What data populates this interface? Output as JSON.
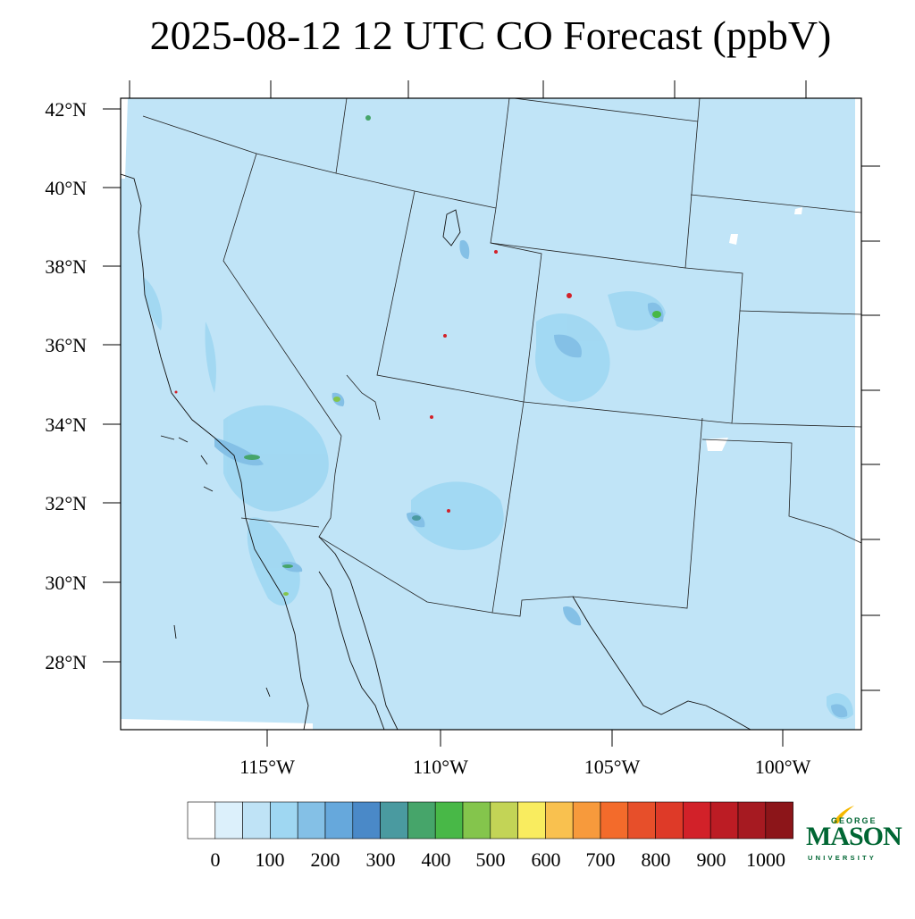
{
  "title": "2025-08-12 12 UTC CO Forecast (ppbV)",
  "map": {
    "lon_range": [
      -119.3,
      -97.8
    ],
    "lat_range": [
      26.3,
      42.3
    ],
    "lat_labels": [
      "42°N",
      "40°N",
      "38°N",
      "36°N",
      "34°N",
      "32°N",
      "30°N",
      "28°N"
    ],
    "lat_values": [
      42,
      40,
      38,
      36,
      34,
      32,
      30,
      28
    ],
    "lon_labels": [
      "115°W",
      "110°W",
      "105°W",
      "100°W"
    ],
    "lon_values": [
      -115,
      -110,
      -105,
      -100
    ],
    "background_color": "#c0e4f7"
  },
  "colorbar": {
    "labels": [
      "0",
      "100",
      "200",
      "300",
      "400",
      "500",
      "600",
      "700",
      "800",
      "900",
      "1000"
    ],
    "colors": [
      "#ffffff",
      "#dcf0fb",
      "#bfe3f6",
      "#9fd7f2",
      "#84c0e6",
      "#66a8dc",
      "#4a89c8",
      "#4a9aa0",
      "#46a56a",
      "#48b847",
      "#84c54c",
      "#c3d456",
      "#f9ec5f",
      "#f9c14f",
      "#f79a3c",
      "#f36b2b",
      "#e74f2a",
      "#de3a28",
      "#d22129",
      "#bc1c24",
      "#a61a21",
      "#8c1519"
    ]
  },
  "logo": {
    "line1": "GEORGE",
    "line2": "MASON",
    "line3": "UNIVERSITY",
    "color": "#006633",
    "accent": "#f5b800"
  }
}
